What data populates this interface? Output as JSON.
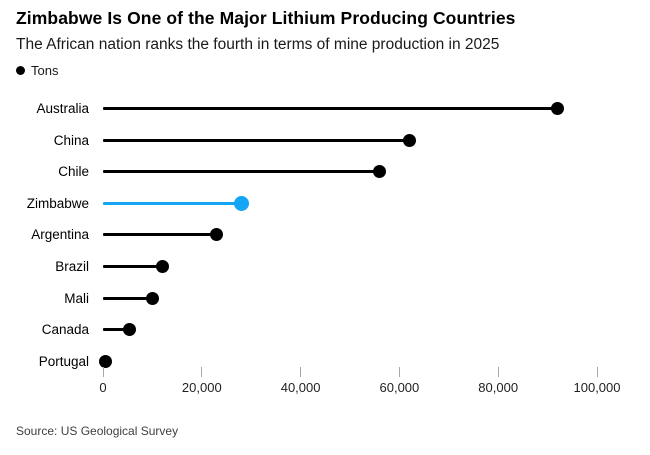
{
  "header": {
    "title": "Zimbabwe Is One of the Major Lithium Producing Countries",
    "subtitle": "The African nation ranks the fourth in terms of mine production in 2025"
  },
  "legend": {
    "marker": "black-dot",
    "label": "Tons"
  },
  "footer": {
    "source": "Source: US Geological Survey"
  },
  "colors": {
    "default_series": "#000000",
    "highlight": "#14a5f5",
    "axis_tick": "#a8a8a8",
    "text": "#000000",
    "source_text": "#3f3f3f"
  },
  "chart_data": {
    "type": "bar",
    "style": "horizontal-lollipop",
    "title": "Zimbabwe Is One of the Major Lithium Producing Countries",
    "subtitle": "The African nation ranks the fourth in terms of mine production in 2025",
    "unit": "Tons",
    "categories": [
      "Australia",
      "China",
      "Chile",
      "Zimbabwe",
      "Argentina",
      "Brazil",
      "Mali",
      "Canada",
      "Portugal"
    ],
    "values": [
      92000,
      62000,
      56000,
      28000,
      23000,
      12000,
      10000,
      5300,
      400
    ],
    "highlight_category": "Zimbabwe",
    "highlight_index": 3,
    "xlabel": "",
    "ylabel": "",
    "xlim": [
      0,
      100000
    ],
    "x_ticks": [
      0,
      20000,
      40000,
      60000,
      80000,
      100000
    ],
    "x_tick_labels": [
      "0",
      "20,000",
      "40,000",
      "60,000",
      "80,000",
      "100,000"
    ],
    "grid": false,
    "legend_position": "top-left"
  }
}
